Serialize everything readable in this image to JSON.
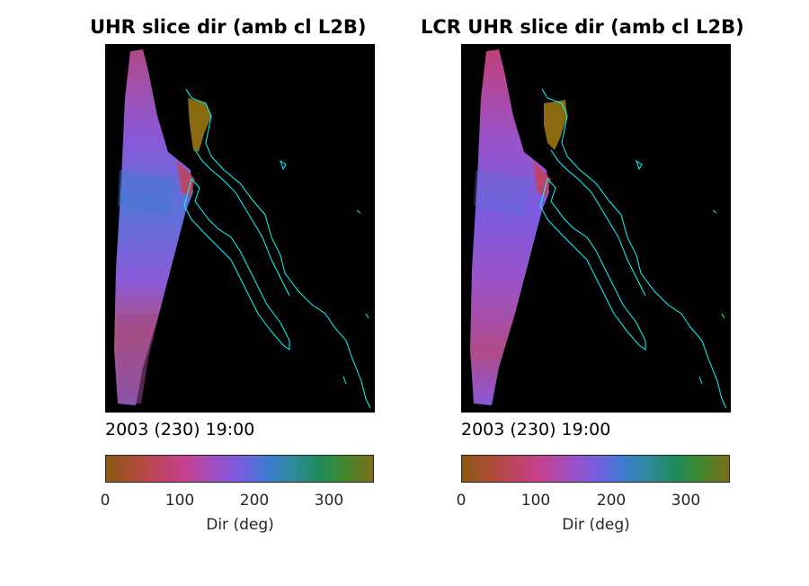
{
  "figure": {
    "panels": [
      {
        "title": "UHR slice dir (amb cl L2B)",
        "timestamp": "2003 (230) 19:00",
        "colorbar": {
          "label": "Dir (deg)",
          "ticks": [
            "0",
            "100",
            "200",
            "300"
          ],
          "range": [
            0,
            360
          ]
        }
      },
      {
        "title": "LCR UHR slice dir (amb cl L2B)",
        "timestamp": "2003 (230) 19:00",
        "colorbar": {
          "label": "Dir (deg)",
          "ticks": [
            "0",
            "100",
            "200",
            "300"
          ],
          "range": [
            0,
            360
          ]
        }
      }
    ],
    "colors": {
      "map_background": "#000000",
      "coastline": "#00ffff",
      "swath_dominant": "#8a58d8",
      "swath_red": "#c04070",
      "swath_teal": "#2e8a8a",
      "olive_patch": "#8a6a10"
    }
  }
}
